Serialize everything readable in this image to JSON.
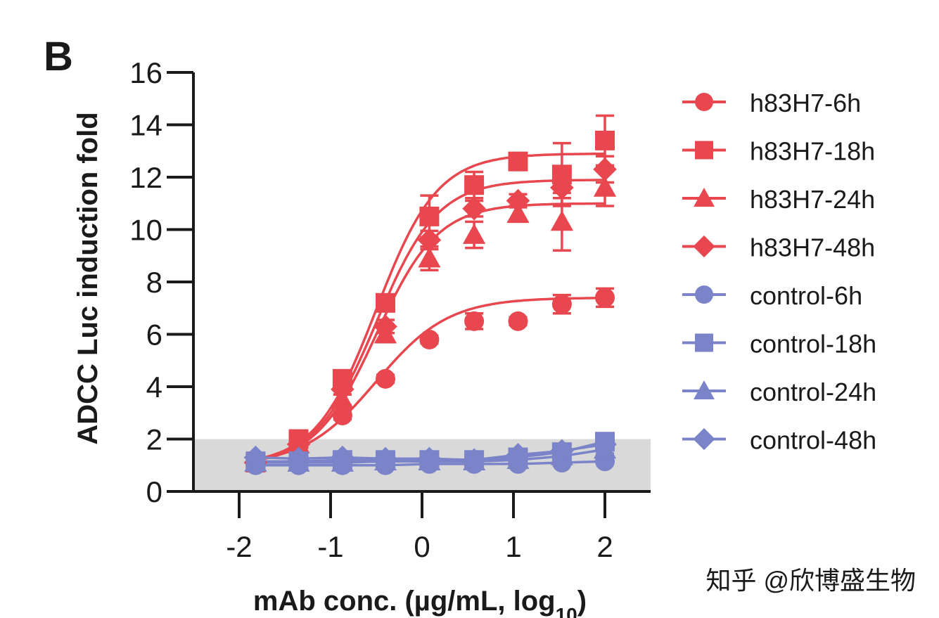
{
  "panel_label": "B",
  "watermark": "知乎 @欣博盛生物",
  "chart_data": {
    "type": "line",
    "title": "",
    "xlabel": "mAb conc. (µg/mL, log",
    "xlabel_sub": "10",
    "xlabel_close": ")",
    "ylabel": "ADCC Luc induction fold",
    "xlim": [
      -2.5,
      2.5
    ],
    "ylim": [
      0,
      16
    ],
    "xticks": [
      -2,
      -1,
      0,
      1,
      2
    ],
    "xtick_labels": [
      "-2",
      "-1",
      "0",
      "1",
      "2"
    ],
    "yticks": [
      0,
      2,
      4,
      6,
      8,
      10,
      12,
      14,
      16
    ],
    "ytick_labels": [
      "0",
      "2",
      "4",
      "6",
      "8",
      "10",
      "12",
      "14",
      "16"
    ],
    "background_band": {
      "y_from": 0,
      "y_to": 2,
      "color": "#d9d9d9"
    },
    "x": [
      -1.82,
      -1.35,
      -0.87,
      -0.4,
      0.08,
      0.57,
      1.05,
      1.53,
      2.0
    ],
    "series": [
      {
        "name": "h83H7-6h",
        "marker": "circle",
        "color": "#e8474f",
        "values": [
          1.05,
          1.45,
          2.9,
          4.3,
          5.8,
          6.5,
          6.5,
          7.15,
          7.4
        ],
        "errors": [
          0.1,
          0.1,
          0.15,
          0.15,
          0.15,
          0.3,
          0.15,
          0.35,
          0.35
        ],
        "fit": {
          "bottom": 1.0,
          "top": 7.4,
          "ec50": -0.5,
          "hill": 1.1
        }
      },
      {
        "name": "h83H7-18h",
        "marker": "square",
        "color": "#e8474f",
        "values": [
          1.1,
          2.0,
          4.3,
          7.2,
          10.5,
          11.7,
          12.6,
          12.1,
          13.4
        ],
        "errors": [
          0.1,
          0.15,
          0.2,
          0.3,
          0.8,
          0.5,
          0.2,
          1.2,
          0.95
        ],
        "fit": {
          "bottom": 1.0,
          "top": 12.9,
          "ec50": -0.5,
          "hill": 1.3
        }
      },
      {
        "name": "h83H7-24h",
        "marker": "triangle",
        "color": "#e8474f",
        "values": [
          1.1,
          1.8,
          3.5,
          6.0,
          8.9,
          9.8,
          10.6,
          10.3,
          11.6
        ],
        "errors": [
          0.1,
          0.15,
          0.2,
          0.3,
          0.45,
          0.5,
          0.3,
          1.1,
          0.7
        ],
        "fit": {
          "bottom": 1.0,
          "top": 11.0,
          "ec50": -0.5,
          "hill": 1.3
        }
      },
      {
        "name": "h83H7-48h",
        "marker": "diamond",
        "color": "#e8474f",
        "values": [
          1.1,
          1.8,
          3.9,
          6.3,
          9.6,
          10.8,
          11.1,
          11.6,
          12.3
        ],
        "errors": [
          0.1,
          0.15,
          0.2,
          0.25,
          0.35,
          0.3,
          0.25,
          0.4,
          0.5
        ],
        "fit": {
          "bottom": 1.0,
          "top": 11.9,
          "ec50": -0.5,
          "hill": 1.3
        }
      },
      {
        "name": "control-6h",
        "marker": "circle",
        "color": "#7b83c9",
        "values": [
          1.0,
          1.0,
          1.0,
          1.0,
          1.05,
          1.05,
          1.05,
          1.1,
          1.15
        ],
        "errors": [
          0.05,
          0.05,
          0.05,
          0.05,
          0.05,
          0.05,
          0.05,
          0.1,
          0.1
        ]
      },
      {
        "name": "control-18h",
        "marker": "square",
        "color": "#7b83c9",
        "values": [
          1.15,
          1.15,
          1.2,
          1.2,
          1.2,
          1.2,
          1.3,
          1.5,
          1.9
        ],
        "errors": [
          0.05,
          0.05,
          0.05,
          0.05,
          0.05,
          0.05,
          0.05,
          0.1,
          0.2
        ]
      },
      {
        "name": "control-24h",
        "marker": "triangle",
        "color": "#7b83c9",
        "values": [
          1.1,
          1.1,
          1.1,
          1.15,
          1.15,
          1.15,
          1.2,
          1.35,
          1.6
        ],
        "errors": [
          0.05,
          0.05,
          0.05,
          0.05,
          0.05,
          0.05,
          0.05,
          0.1,
          0.15
        ]
      },
      {
        "name": "control-48h",
        "marker": "diamond",
        "color": "#7b83c9",
        "values": [
          1.3,
          1.25,
          1.3,
          1.25,
          1.25,
          1.2,
          1.4,
          1.55,
          1.8
        ],
        "errors": [
          0.05,
          0.05,
          0.05,
          0.05,
          0.05,
          0.05,
          0.05,
          0.1,
          0.15
        ]
      }
    ],
    "legend_position": "right"
  }
}
